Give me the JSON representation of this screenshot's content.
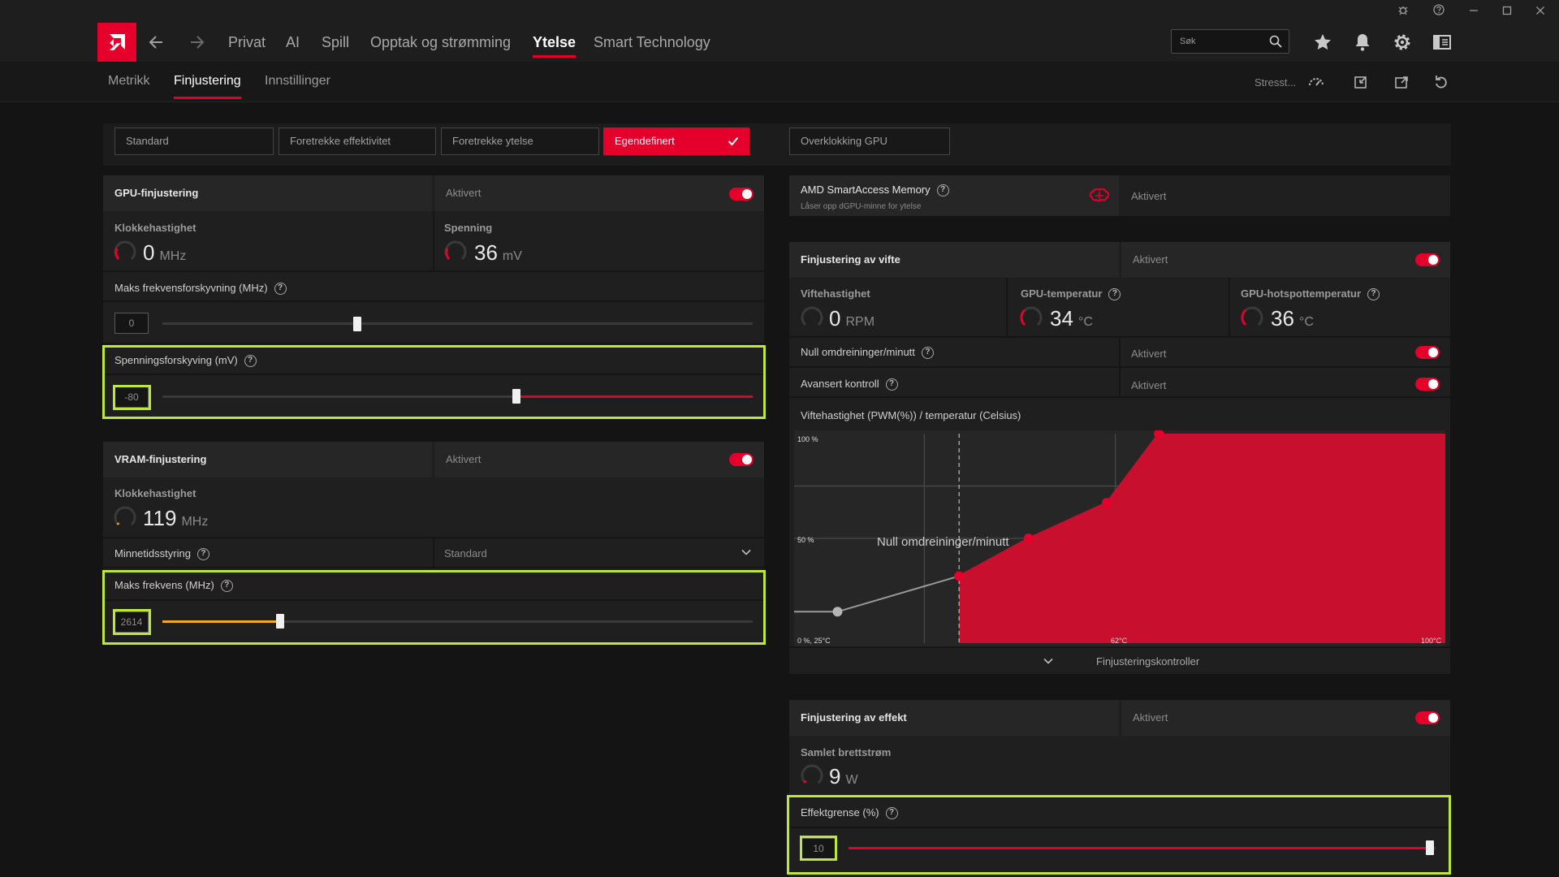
{
  "window": {
    "controls": [
      "bug-icon",
      "help-icon",
      "minimize-icon",
      "maximize-icon",
      "close-icon"
    ]
  },
  "nav": {
    "items": [
      {
        "label": "Privat"
      },
      {
        "label": "AI"
      },
      {
        "label": "Spill"
      },
      {
        "label": "Opptak og strømming"
      },
      {
        "label": "Ytelse",
        "active": true
      },
      {
        "label": "Smart Technology"
      }
    ],
    "search_placeholder": "Søk"
  },
  "subnav": {
    "tabs": [
      {
        "label": "Metrikk"
      },
      {
        "label": "Finjustering",
        "active": true
      },
      {
        "label": "Innstillinger"
      }
    ],
    "stress_label": "Stresst..."
  },
  "presets": {
    "items": [
      "Standard",
      "Foretrekke effektivitet",
      "Foretrekke ytelse",
      "Egendefinert"
    ],
    "selected": "Egendefinert",
    "overclock": "Overklokking GPU"
  },
  "gpu": {
    "title": "GPU-finjustering",
    "status": "Aktivert",
    "clock_label": "Klokkehastighet",
    "clock_value": "0",
    "clock_unit": "MHz",
    "voltage_label": "Spenning",
    "voltage_value": "36",
    "voltage_unit": "mV",
    "max_freq_offset_label": "Maks frekvensforskyvning (MHz)",
    "max_freq_offset_value": "0",
    "max_freq_offset_fraction": 0.33,
    "voltage_offset_label": "Spenningsforskyving (mV)",
    "voltage_offset_value": "-80",
    "voltage_offset_fraction": 0.6
  },
  "vram": {
    "title": "VRAM-finjustering",
    "status": "Aktivert",
    "clock_label": "Klokkehastighet",
    "clock_value": "119",
    "clock_unit": "MHz",
    "timing_label": "Minnetidsstyring",
    "timing_value": "Standard",
    "max_freq_label": "Maks frekvens (MHz)",
    "max_freq_value": "2614",
    "max_freq_fraction": 0.2
  },
  "sam": {
    "title": "AMD SmartAccess Memory",
    "subtitle": "Låser opp dGPU-minne for ytelse",
    "status": "Aktivert"
  },
  "fan": {
    "title": "Finjustering av vifte",
    "status": "Aktivert",
    "speed_label": "Viftehastighet",
    "speed_value": "0",
    "speed_unit": "RPM",
    "gpu_temp_label": "GPU-temperatur",
    "gpu_temp_value": "34",
    "gpu_temp_unit": "°C",
    "hotspot_label": "GPU-hotspottemperatur",
    "hotspot_value": "36",
    "hotspot_unit": "°C",
    "zero_rpm_label": "Null omdreininger/minutt",
    "zero_rpm_status": "Aktivert",
    "advanced_label": "Avansert kontroll",
    "advanced_status": "Aktivert",
    "curve_title": "Viftehastighet (PWM(%)) / temperatur (Celsius)",
    "zero_rpm_overlay": "Null omdreininger/minutt",
    "y_top": "100 %",
    "y_mid": "50 %",
    "x_origin": "0 %, 25°C",
    "x_mid": "62°C",
    "x_end": "100°C",
    "expand_label": "Finjusteringskontroller"
  },
  "chart_data": {
    "type": "area",
    "title": "Viftehastighet (PWM(%)) / temperatur (Celsius)",
    "x_unit": "°C",
    "y_unit": "%",
    "xlim": [
      25,
      100
    ],
    "ylim": [
      0,
      100
    ],
    "x_tick_labels": [
      "0 %, 25°C",
      "62°C",
      "100°C"
    ],
    "y_tick_labels": [
      "100 %",
      "50 %"
    ],
    "zero_rpm_threshold_c": 44,
    "points": [
      {
        "x": 30,
        "y": 15
      },
      {
        "x": 44,
        "y": 32
      },
      {
        "x": 52,
        "y": 50
      },
      {
        "x": 61,
        "y": 67
      },
      {
        "x": 67,
        "y": 100
      }
    ],
    "colors": {
      "active": "#c8102e",
      "inactive": "#9a9a9a"
    }
  },
  "power": {
    "title": "Finjustering av effekt",
    "status": "Aktivert",
    "board_power_label": "Samlet brettstrøm",
    "board_power_value": "9",
    "board_power_unit": "W",
    "limit_label": "Effektgrense (%)",
    "limit_value": "10",
    "limit_fraction": 0.99
  },
  "colors": {
    "accent": "#e4002b",
    "highlight": "#bde83a",
    "vram_slider": "#f5a623"
  }
}
